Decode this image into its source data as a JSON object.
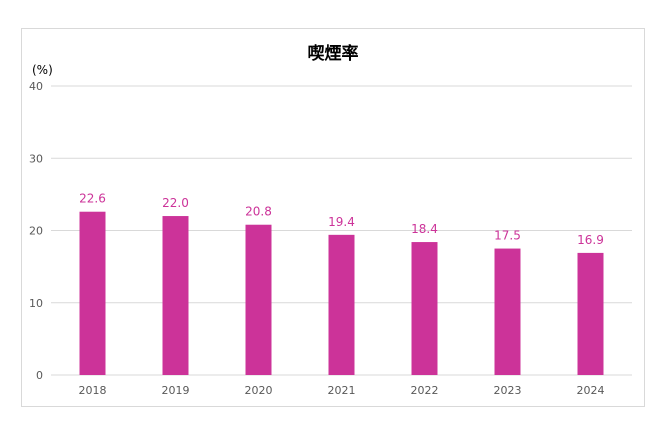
{
  "chart_data": {
    "type": "bar",
    "title": "喫煙率",
    "ylabel": "(%)",
    "xlabel": "",
    "categories": [
      "2018",
      "2019",
      "2020",
      "2021",
      "2022",
      "2023",
      "2024"
    ],
    "values": [
      22.6,
      22.0,
      20.8,
      19.4,
      18.4,
      17.5,
      16.9
    ],
    "value_labels": [
      "22.6",
      "22.0",
      "20.8",
      "19.4",
      "18.4",
      "17.5",
      "16.9"
    ],
    "ylim": [
      0,
      40
    ],
    "yticks": [
      0,
      10,
      20,
      30,
      40
    ],
    "ytick_labels": [
      "0",
      "10",
      "20",
      "30",
      "40"
    ],
    "grid": true,
    "legend": "none",
    "colors": {
      "bar": "#cc3399",
      "data_label": "#cc3399",
      "grid": "#d9d9d9",
      "frame": "#d9d9d9"
    }
  }
}
